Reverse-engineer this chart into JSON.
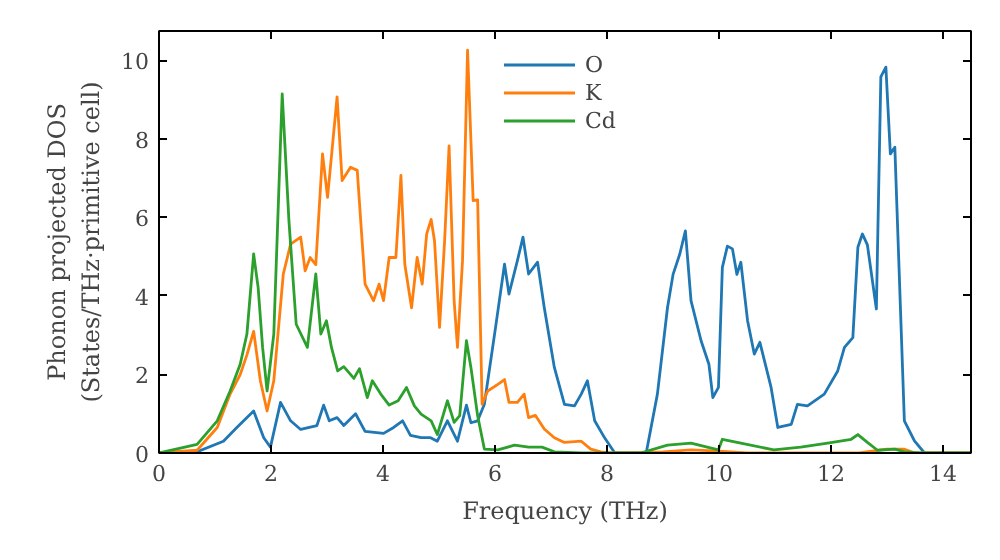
{
  "chart_data": {
    "type": "line",
    "xlabel": "Frequency (THz)",
    "ylabel": "Phonon projected DOS\n(States/THz·primitive cell)",
    "xlim": [
      0,
      14.5
    ],
    "ylim": [
      0,
      10.75
    ],
    "xticks": [
      0,
      2,
      4,
      6,
      8,
      10,
      12,
      14
    ],
    "yticks": [
      0,
      2,
      4,
      6,
      8,
      10
    ],
    "grid": false,
    "legend": "top",
    "marker": "none",
    "line_style": "solid",
    "series": [
      {
        "name": "O",
        "color": "#1f77b4",
        "x": [
          0,
          0.68,
          1.15,
          1.39,
          1.69,
          1.87,
          1.99,
          2.17,
          2.35,
          2.53,
          2.82,
          2.94,
          3.04,
          3.18,
          3.3,
          3.51,
          3.68,
          4.01,
          4.19,
          4.35,
          4.49,
          4.68,
          4.85,
          4.97,
          5.15,
          5.33,
          5.49,
          5.57,
          5.69,
          5.81,
          6.01,
          6.17,
          6.25,
          6.4,
          6.5,
          6.6,
          6.76,
          6.88,
          7.06,
          7.24,
          7.42,
          7.54,
          7.65,
          7.78,
          7.96,
          8.14,
          8.7,
          8.9,
          9.08,
          9.18,
          9.3,
          9.4,
          9.5,
          9.68,
          9.82,
          9.89,
          9.99,
          10.06,
          10.15,
          10.24,
          10.32,
          10.39,
          10.51,
          10.63,
          10.73,
          10.93,
          11.05,
          11.29,
          11.4,
          11.58,
          11.88,
          12.12,
          12.24,
          12.39,
          12.48,
          12.56,
          12.65,
          12.81,
          12.89,
          12.98,
          13.06,
          13.14,
          13.31,
          13.49,
          13.67,
          14.5
        ],
        "values": [
          0,
          0.03,
          0.3,
          0.65,
          1.07,
          0.39,
          0.15,
          1.29,
          0.82,
          0.6,
          0.7,
          1.22,
          0.82,
          0.9,
          0.7,
          1.0,
          0.55,
          0.5,
          0.65,
          0.82,
          0.45,
          0.39,
          0.39,
          0.3,
          0.82,
          0.3,
          1.22,
          0.77,
          0.82,
          1.24,
          3.2,
          4.81,
          4.05,
          4.9,
          5.5,
          4.56,
          4.86,
          3.7,
          2.18,
          1.24,
          1.2,
          1.5,
          1.84,
          0.82,
          0.38,
          0,
          0,
          1.5,
          3.7,
          4.55,
          5.07,
          5.66,
          3.88,
          2.86,
          2.26,
          1.41,
          1.67,
          4.73,
          5.27,
          5.2,
          4.55,
          4.86,
          3.37,
          2.52,
          2.82,
          1.67,
          0.65,
          0.73,
          1.24,
          1.2,
          1.5,
          2.09,
          2.69,
          2.94,
          5.24,
          5.58,
          5.3,
          3.67,
          9.58,
          9.83,
          7.62,
          7.79,
          0.82,
          0.31,
          0,
          0
        ]
      },
      {
        "name": "K",
        "color": "#ff7f0e",
        "x": [
          0,
          0.68,
          1.04,
          1.27,
          1.45,
          1.57,
          1.69,
          1.81,
          1.93,
          2.05,
          2.22,
          2.35,
          2.53,
          2.61,
          2.7,
          2.8,
          2.92,
          3.01,
          3.18,
          3.27,
          3.42,
          3.54,
          3.68,
          3.83,
          3.93,
          4.01,
          4.11,
          4.23,
          4.32,
          4.39,
          4.51,
          4.61,
          4.7,
          4.78,
          4.86,
          4.92,
          5.01,
          5.1,
          5.18,
          5.27,
          5.33,
          5.42,
          5.51,
          5.61,
          5.69,
          5.77,
          5.87,
          6.05,
          6.17,
          6.25,
          6.4,
          6.52,
          6.6,
          6.72,
          6.88,
          7.06,
          7.24,
          7.54,
          7.71,
          7.89,
          8.05,
          8.5,
          9.0,
          9.5,
          10.0,
          10.5,
          12.5,
          13.0,
          13.3,
          13.5,
          14.5
        ],
        "values": [
          0,
          0.07,
          0.65,
          1.5,
          2.0,
          2.5,
          3.1,
          1.84,
          1.07,
          1.84,
          4.56,
          5.32,
          5.5,
          4.64,
          4.98,
          4.8,
          7.62,
          6.51,
          9.07,
          6.94,
          7.28,
          7.2,
          4.3,
          3.88,
          4.3,
          3.88,
          4.98,
          4.98,
          7.07,
          4.8,
          3.7,
          4.98,
          4.3,
          5.58,
          5.95,
          5.4,
          3.2,
          5.4,
          7.82,
          3.88,
          2.69,
          4.9,
          10.26,
          6.43,
          6.45,
          1.24,
          1.58,
          1.75,
          1.87,
          1.29,
          1.29,
          1.5,
          0.9,
          0.96,
          0.61,
          0.39,
          0.27,
          0.3,
          0.1,
          0.03,
          0,
          0,
          0.03,
          0.08,
          0.05,
          0,
          0,
          0.1,
          0.1,
          0,
          0
        ]
      },
      {
        "name": "Cd",
        "color": "#2ca02c",
        "x": [
          0,
          0.68,
          1.04,
          1.27,
          1.45,
          1.57,
          1.69,
          1.77,
          1.85,
          1.93,
          2.05,
          2.2,
          2.32,
          2.45,
          2.65,
          2.8,
          2.89,
          2.99,
          3.08,
          3.19,
          3.3,
          3.48,
          3.58,
          3.72,
          3.81,
          3.96,
          4.11,
          4.27,
          4.42,
          4.56,
          4.68,
          4.86,
          4.97,
          5.15,
          5.27,
          5.37,
          5.49,
          5.57,
          5.69,
          5.81,
          6.05,
          6.35,
          6.6,
          6.84,
          7.06,
          7.54,
          8.6,
          9.08,
          9.5,
          9.99,
          10.06,
          10.39,
          10.98,
          11.46,
          11.94,
          12.36,
          12.48,
          12.65,
          12.83,
          13.14,
          13.31,
          13.6,
          14.5
        ],
        "values": [
          0,
          0.22,
          0.82,
          1.58,
          2.26,
          3.03,
          5.07,
          4.22,
          2.69,
          1.58,
          3.03,
          9.15,
          5.92,
          3.28,
          2.69,
          4.56,
          3.03,
          3.37,
          2.69,
          2.09,
          2.2,
          1.9,
          2.15,
          1.41,
          1.84,
          1.5,
          1.22,
          1.33,
          1.67,
          1.2,
          0.99,
          0.82,
          0.47,
          1.33,
          0.78,
          0.95,
          2.86,
          2.18,
          0.95,
          0.1,
          0.08,
          0.2,
          0.15,
          0.15,
          0.03,
          0,
          0,
          0.2,
          0.25,
          0.08,
          0.35,
          0.25,
          0.08,
          0.15,
          0.25,
          0.35,
          0.47,
          0.27,
          0.07,
          0.1,
          0.03,
          0,
          0
        ]
      }
    ]
  }
}
